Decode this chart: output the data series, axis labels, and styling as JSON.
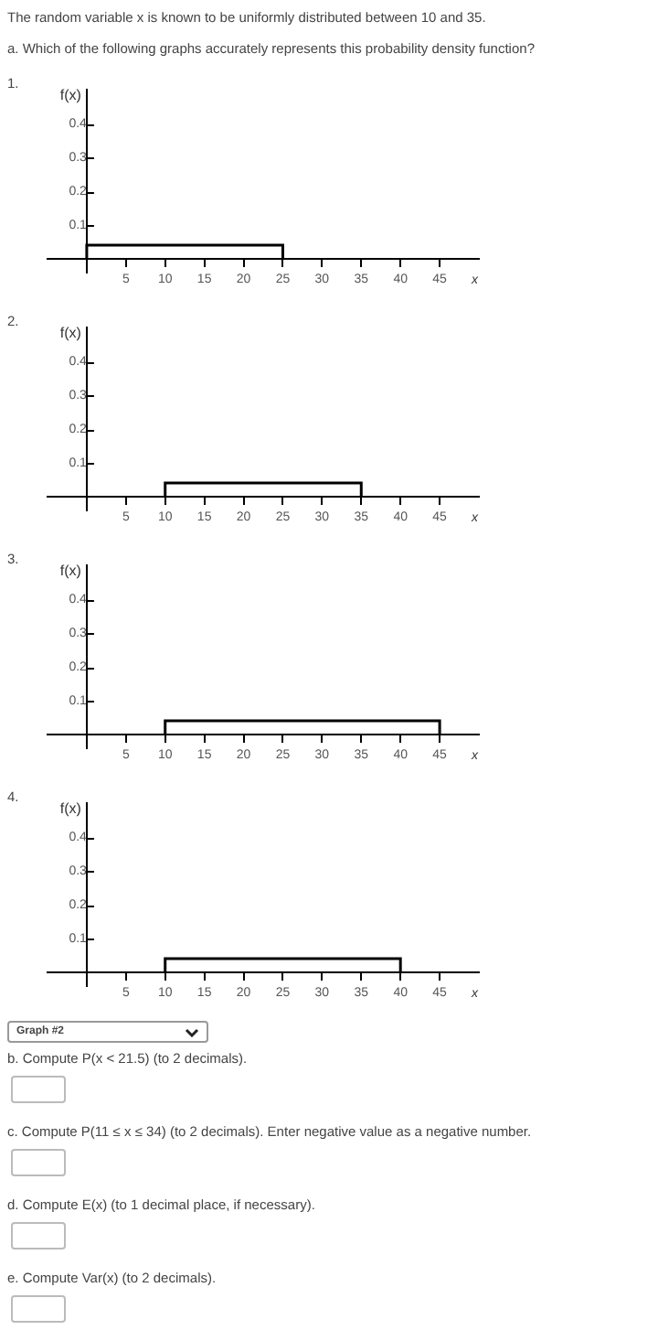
{
  "chart_data": [
    {
      "type": "histogram",
      "title": "1.",
      "ylabel": "f(x)",
      "xlabel": "x",
      "bins": [
        0,
        25
      ],
      "values": [
        0.04
      ],
      "color": "#000000",
      "xlim": [
        -5,
        50
      ],
      "xticks": [
        5,
        10,
        15,
        20,
        25,
        30,
        35,
        40,
        45
      ],
      "ylim": [
        -0.04,
        0.5
      ],
      "yticks": [
        0.1,
        0.2,
        0.3,
        0.4
      ],
      "grid": false,
      "annotations": [
        "The random variable x is known to be uniformly distributed between 10 and 35.",
        "a. Which of the following graphs accurately represents this probability density function?"
      ]
    },
    {
      "type": "histogram",
      "title": "2.",
      "ylabel": "f(x)",
      "xlabel": "x",
      "bins": [
        10,
        35
      ],
      "values": [
        0.04
      ],
      "color": "#000000",
      "xlim": [
        -5,
        50
      ],
      "xticks": [
        5,
        10,
        15,
        20,
        25,
        30,
        35,
        40,
        45
      ],
      "ylim": [
        -0.04,
        0.5
      ],
      "yticks": [
        0.1,
        0.2,
        0.3,
        0.4
      ],
      "grid": false
    },
    {
      "type": "histogram",
      "title": "3.",
      "ylabel": "f(x)",
      "xlabel": "x",
      "bins": [
        10,
        45
      ],
      "values": [
        0.04
      ],
      "color": "#000000",
      "xlim": [
        -5,
        50
      ],
      "xticks": [
        5,
        10,
        15,
        20,
        25,
        30,
        35,
        40,
        45
      ],
      "ylim": [
        -0.04,
        0.5
      ],
      "yticks": [
        0.1,
        0.2,
        0.3,
        0.4
      ],
      "grid": false
    },
    {
      "type": "histogram",
      "title": "4.",
      "ylabel": "f(x)",
      "xlabel": "x",
      "bins": [
        10,
        40
      ],
      "values": [
        0.04
      ],
      "color": "#000000",
      "xlim": [
        -5,
        50
      ],
      "xticks": [
        5,
        10,
        15,
        20,
        25,
        30,
        35,
        40,
        45
      ],
      "ylim": [
        -0.04,
        0.5
      ],
      "yticks": [
        0.1,
        0.2,
        0.3,
        0.4
      ],
      "grid": false,
      "annotations": [
        "Graph #2",
        "b. Compute P(x < 21.5) (to 2 decimals).",
        "c. Compute P(11 ≤ x ≤ 34) (to 2 decimals). Enter negative value as a negative number.",
        "d. Compute E(x) (to 1 decimal place, if necessary).",
        "e. Compute Var(x) (to 2 decimals)."
      ]
    }
  ]
}
